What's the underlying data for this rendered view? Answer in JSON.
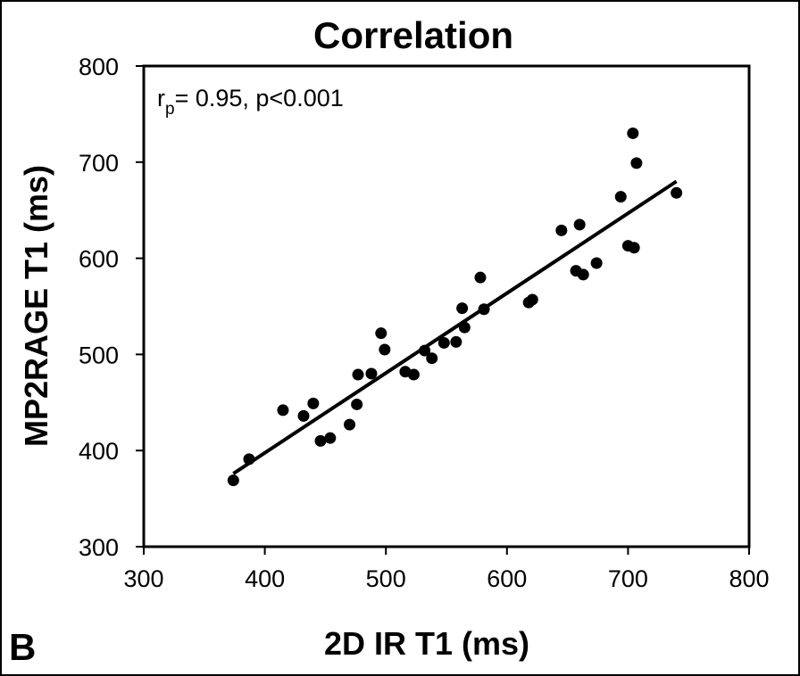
{
  "panel_label": "B",
  "chart_data": {
    "type": "scatter",
    "title": "Correlation",
    "xlabel": "2D IR T1 (ms)",
    "ylabel": "MP2RAGE T1 (ms)",
    "xlim": [
      300,
      800
    ],
    "ylim": [
      300,
      800
    ],
    "xticks": [
      300,
      400,
      500,
      600,
      700,
      800
    ],
    "yticks": [
      300,
      400,
      500,
      600,
      700,
      800
    ],
    "grid": false,
    "annotation": {
      "prefix": "r",
      "subscript": "p",
      "text": "= 0.95, p<0.001"
    },
    "series": [
      {
        "name": "measurements",
        "points": [
          {
            "x": 374,
            "y": 369
          },
          {
            "x": 387,
            "y": 391
          },
          {
            "x": 415,
            "y": 442
          },
          {
            "x": 432,
            "y": 436
          },
          {
            "x": 440,
            "y": 449
          },
          {
            "x": 446,
            "y": 410
          },
          {
            "x": 454,
            "y": 413
          },
          {
            "x": 470,
            "y": 427
          },
          {
            "x": 476,
            "y": 448
          },
          {
            "x": 477,
            "y": 479
          },
          {
            "x": 488,
            "y": 480
          },
          {
            "x": 496,
            "y": 522
          },
          {
            "x": 499,
            "y": 505
          },
          {
            "x": 516,
            "y": 482
          },
          {
            "x": 523,
            "y": 479
          },
          {
            "x": 532,
            "y": 504
          },
          {
            "x": 538,
            "y": 496
          },
          {
            "x": 548,
            "y": 512
          },
          {
            "x": 558,
            "y": 513
          },
          {
            "x": 563,
            "y": 548
          },
          {
            "x": 565,
            "y": 528
          },
          {
            "x": 578,
            "y": 580
          },
          {
            "x": 581,
            "y": 547
          },
          {
            "x": 618,
            "y": 554
          },
          {
            "x": 621,
            "y": 557
          },
          {
            "x": 645,
            "y": 629
          },
          {
            "x": 657,
            "y": 587
          },
          {
            "x": 660,
            "y": 635
          },
          {
            "x": 663,
            "y": 583
          },
          {
            "x": 674,
            "y": 595
          },
          {
            "x": 694,
            "y": 664
          },
          {
            "x": 700,
            "y": 613
          },
          {
            "x": 704,
            "y": 730
          },
          {
            "x": 705,
            "y": 611
          },
          {
            "x": 707,
            "y": 699
          },
          {
            "x": 740,
            "y": 668
          }
        ]
      }
    ],
    "fit_line": {
      "x": [
        374,
        740
      ],
      "y": [
        376,
        680
      ]
    }
  }
}
